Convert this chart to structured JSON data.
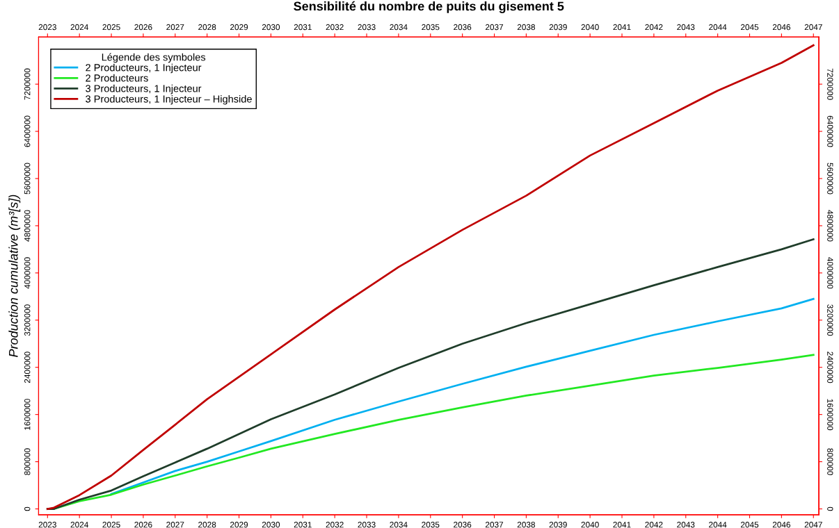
{
  "chart_data": {
    "type": "line",
    "title": "Sensibilité du nombre de puits du gisement 5",
    "ylabel": "Production cumulative (m³[s])",
    "legend_title": "Légende des symboles",
    "legend": "top left",
    "grid": false,
    "line_style": "solid",
    "marker": "none",
    "x": [
      2023,
      2023.2,
      2024,
      2025,
      2026,
      2027,
      2028,
      2029,
      2030,
      2032,
      2034,
      2036,
      2038,
      2040,
      2042,
      2044,
      2046,
      2047
    ],
    "series": [
      {
        "name": "2 Producteurs, 1 Injecteur",
        "color": "#00b0f0",
        "values": [
          0,
          0,
          null,
          253000,
          448000,
          643000,
          799000,
          974000,
          1150000,
          1510000,
          1820000,
          2120000,
          2410000,
          2680000,
          2950000,
          3180000,
          3400000,
          3560000
        ]
      },
      {
        "name": "2 Producteurs",
        "color": "#22e822",
        "values": [
          0,
          0,
          132000,
          241000,
          412000,
          565000,
          721000,
          869000,
          1020000,
          1270000,
          1510000,
          1720000,
          1920000,
          2090000,
          2260000,
          2390000,
          2530000,
          2610000
        ]
      },
      {
        "name": "3 Producteurs, 1 Injecteur",
        "color": "#1f3d2a",
        "values": [
          0,
          0,
          156000,
          311000,
          553000,
          787000,
          1020000,
          1270000,
          1520000,
          1940000,
          2390000,
          2800000,
          3150000,
          3470000,
          3790000,
          4100000,
          4400000,
          4570000
        ]
      },
      {
        "name": "3 Producteurs, 1 Injecteur – Highside",
        "color": "#c00000",
        "values": [
          0,
          20000,
          234000,
          565000,
          1000000,
          1427000,
          1860000,
          2240000,
          2620000,
          3380000,
          4100000,
          4730000,
          5310000,
          5990000,
          6540000,
          7090000,
          7560000,
          7860000
        ]
      }
    ],
    "xlim": [
      2022.72,
      2047.17
    ],
    "xticks": [
      2023,
      2024,
      2025,
      2026,
      2027,
      2028,
      2029,
      2030,
      2031,
      2032,
      2033,
      2034,
      2035,
      2036,
      2037,
      2038,
      2039,
      2040,
      2041,
      2042,
      2043,
      2044,
      2045,
      2046,
      2047
    ],
    "x2lim": [
      2022.72,
      2047.17
    ],
    "x2ticks": [
      2023,
      2024,
      2025,
      2026,
      2027,
      2028,
      2029,
      2030,
      2031,
      2032,
      2033,
      2034,
      2035,
      2036,
      2037,
      2038,
      2039,
      2040,
      2041,
      2042,
      2043,
      2044,
      2045,
      2046,
      2047
    ],
    "ylim": [
      -100000,
      8000000
    ],
    "yticks": [
      0,
      800000,
      1600000,
      2400000,
      3200000,
      4000000,
      4800000,
      5600000,
      6400000,
      7200000
    ],
    "y2lim": [
      -100000,
      8000000
    ],
    "y2ticks": [
      0,
      800000,
      1600000,
      2400000,
      3200000,
      4000000,
      4800000,
      5600000,
      6400000,
      7200000
    ]
  }
}
